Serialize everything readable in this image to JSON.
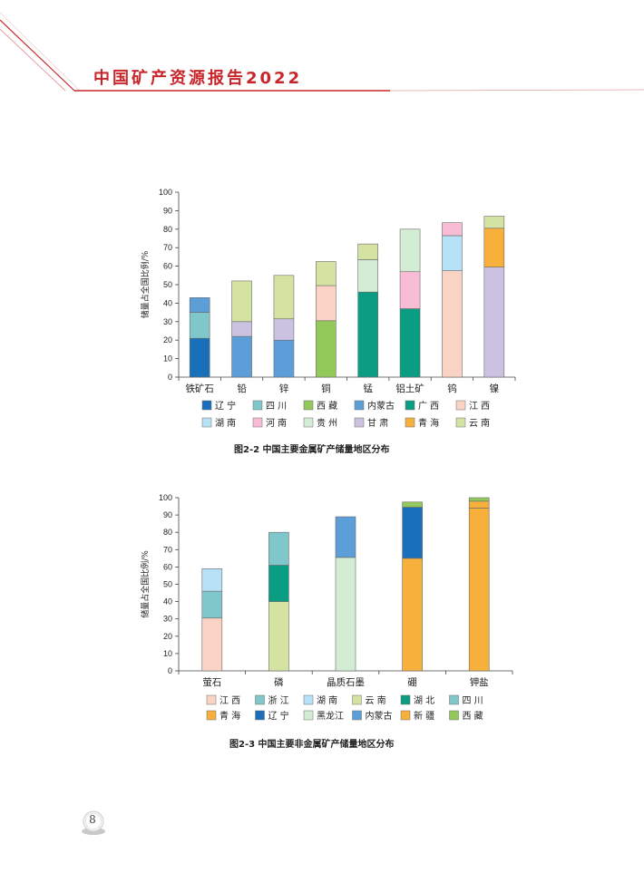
{
  "header": {
    "title": "中国矿产资源报告2022"
  },
  "page": {
    "number": "8"
  },
  "colors": {
    "accent": "#c8262b",
    "series": {
      "辽宁": "#1a6fba",
      "四川": "#80c7cc",
      "西藏": "#93c95a",
      "内蒙古": "#5c9fd8",
      "广西": "#0b9c84",
      "江西": "#fad3c4",
      "湖南": "#b7e1f6",
      "河南": "#f8bdd5",
      "贵州": "#d3ecd4",
      "甘肃": "#cbc2e1",
      "青海": "#f7b03c",
      "云南": "#d5e3a2",
      "浙江": "#80c7cc",
      "湖北": "#0b9c84",
      "黑龙江": "#d3ecd4",
      "新疆": "#f7b03c"
    }
  },
  "chart_data": [
    {
      "type": "bar",
      "stacked": true,
      "caption": "图2-2   中国主要金属矿产储量地区分布",
      "ylabel": "储量占全国比例/%",
      "ylim": [
        0,
        100
      ],
      "yticks": [
        "0",
        "10",
        "20",
        "30",
        "40",
        "50",
        "60",
        "70",
        "80",
        "90",
        "100"
      ],
      "categories": [
        "铁矿石",
        "铅",
        "锌",
        "铜",
        "锰",
        "铝土矿",
        "钨",
        "镍"
      ],
      "series": [
        {
          "name": "辽宁",
          "values": [
            21,
            0,
            0,
            0,
            0,
            0,
            0,
            0
          ]
        },
        {
          "name": "四川",
          "values": [
            14,
            0,
            0,
            0,
            0,
            0,
            0,
            0
          ]
        },
        {
          "name": "西藏",
          "values": [
            0,
            0,
            0,
            30.5,
            0,
            0,
            0,
            0
          ]
        },
        {
          "name": "内蒙古",
          "values": [
            8,
            22,
            20,
            0,
            0,
            0,
            0,
            0
          ]
        },
        {
          "name": "广西",
          "values": [
            0,
            0,
            0,
            0,
            46,
            37,
            0,
            0
          ]
        },
        {
          "name": "江西",
          "values": [
            0,
            0,
            0,
            19,
            0,
            0,
            57.5,
            0
          ]
        },
        {
          "name": "湖南",
          "values": [
            0,
            0,
            0,
            0,
            0,
            0,
            19,
            0
          ]
        },
        {
          "name": "河南",
          "values": [
            0,
            0,
            0,
            0,
            0,
            20,
            7,
            0
          ]
        },
        {
          "name": "贵州",
          "values": [
            0,
            0,
            0,
            0,
            17.5,
            23,
            0,
            0
          ]
        },
        {
          "name": "甘肃",
          "values": [
            0,
            8,
            11.5,
            0,
            0,
            0,
            0,
            59.5
          ]
        },
        {
          "name": "青海",
          "values": [
            0,
            0,
            0,
            0,
            0,
            0,
            0,
            21
          ]
        },
        {
          "name": "云南",
          "values": [
            0,
            22,
            23.5,
            13,
            8.5,
            0,
            0,
            6.5
          ]
        }
      ],
      "legend": [
        "辽宁",
        "四川",
        "西藏",
        "内蒙古",
        "广西",
        "江西",
        "湖南",
        "河南",
        "贵州",
        "甘肃",
        "青海",
        "云南"
      ],
      "legend_labels": [
        "辽 宁",
        "四 川",
        "西 藏",
        "内蒙古",
        "广 西",
        "江 西",
        "湖 南",
        "河 南",
        "贵 州",
        "甘 肃",
        "青 海",
        "云 南"
      ],
      "grid": false,
      "legend_position": "bottom"
    },
    {
      "type": "bar",
      "stacked": true,
      "caption": "图2-3   中国主要非金属矿产储量地区分布",
      "ylabel": "储量占全国比例/%",
      "ylim": [
        0,
        100
      ],
      "yticks": [
        "0",
        "10",
        "20",
        "30",
        "40",
        "50",
        "60",
        "70",
        "80",
        "90",
        "100"
      ],
      "categories": [
        "萤石",
        "磷",
        "晶质石墨",
        "硼",
        "钾盐"
      ],
      "series": [
        {
          "name": "江西",
          "values": [
            30.5,
            0,
            0,
            0,
            0
          ]
        },
        {
          "name": "浙江",
          "values": [
            15.5,
            0,
            0,
            0,
            0
          ]
        },
        {
          "name": "湖南",
          "values": [
            13,
            0,
            0,
            0,
            0
          ]
        },
        {
          "name": "云南",
          "values": [
            0,
            40,
            0,
            0,
            0
          ]
        },
        {
          "name": "湖北",
          "values": [
            0,
            21,
            0,
            0,
            0
          ]
        },
        {
          "name": "四川",
          "values": [
            0,
            19,
            0,
            0,
            0
          ]
        },
        {
          "name": "青海",
          "values": [
            0,
            0,
            0,
            65,
            94
          ]
        },
        {
          "name": "辽宁",
          "values": [
            0,
            0,
            0,
            29.5,
            0
          ]
        },
        {
          "name": "黑龙江",
          "values": [
            0,
            0,
            65.5,
            0,
            0
          ]
        },
        {
          "name": "内蒙古",
          "values": [
            0,
            0,
            23.5,
            0,
            0
          ]
        },
        {
          "name": "新疆",
          "values": [
            0,
            0,
            0,
            0,
            4
          ]
        },
        {
          "name": "西藏",
          "values": [
            0,
            0,
            0,
            3,
            2
          ]
        }
      ],
      "legend": [
        "江西",
        "浙江",
        "湖南",
        "云南",
        "湖北",
        "四川",
        "青海",
        "辽宁",
        "黑龙江",
        "内蒙古",
        "新疆",
        "西藏"
      ],
      "legend_labels": [
        "江 西",
        "浙 江",
        "湖 南",
        "云 南",
        "湖 北",
        "四 川",
        "青 海",
        "辽 宁",
        "黑龙江",
        "内蒙古",
        "新 疆",
        "西 藏"
      ],
      "grid": false,
      "legend_position": "bottom"
    }
  ]
}
